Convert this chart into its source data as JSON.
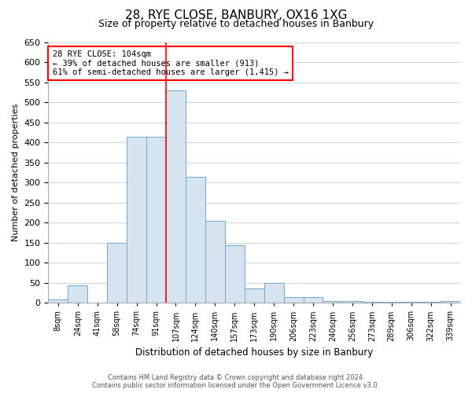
{
  "title": "28, RYE CLOSE, BANBURY, OX16 1XG",
  "subtitle": "Size of property relative to detached houses in Banbury",
  "xlabel": "Distribution of detached houses by size in Banbury",
  "ylabel": "Number of detached properties",
  "bar_fill_color": "#d6e4f0",
  "bar_edge_color": "#6ea8cc",
  "background_color": "#ffffff",
  "grid_color": "#c8d4de",
  "categories": [
    "8sqm",
    "24sqm",
    "41sqm",
    "58sqm",
    "74sqm",
    "91sqm",
    "107sqm",
    "124sqm",
    "140sqm",
    "157sqm",
    "173sqm",
    "190sqm",
    "206sqm",
    "223sqm",
    "240sqm",
    "256sqm",
    "273sqm",
    "289sqm",
    "306sqm",
    "322sqm",
    "339sqm"
  ],
  "values": [
    8,
    44,
    0,
    150,
    415,
    415,
    530,
    315,
    205,
    143,
    35,
    50,
    15,
    15,
    5,
    5,
    2,
    2,
    2,
    2,
    5
  ],
  "red_line_index": 6,
  "annotation_line1": "28 RYE CLOSE: 104sqm",
  "annotation_line2": "← 39% of detached houses are smaller (913)",
  "annotation_line3": "61% of semi-detached houses are larger (1,415) →",
  "ylim": [
    0,
    650
  ],
  "yticks": [
    0,
    50,
    100,
    150,
    200,
    250,
    300,
    350,
    400,
    450,
    500,
    550,
    600,
    650
  ],
  "footer_line1": "Contains HM Land Registry data © Crown copyright and database right 2024.",
  "footer_line2": "Contains public sector information licensed under the Open Government Licence v3.0."
}
